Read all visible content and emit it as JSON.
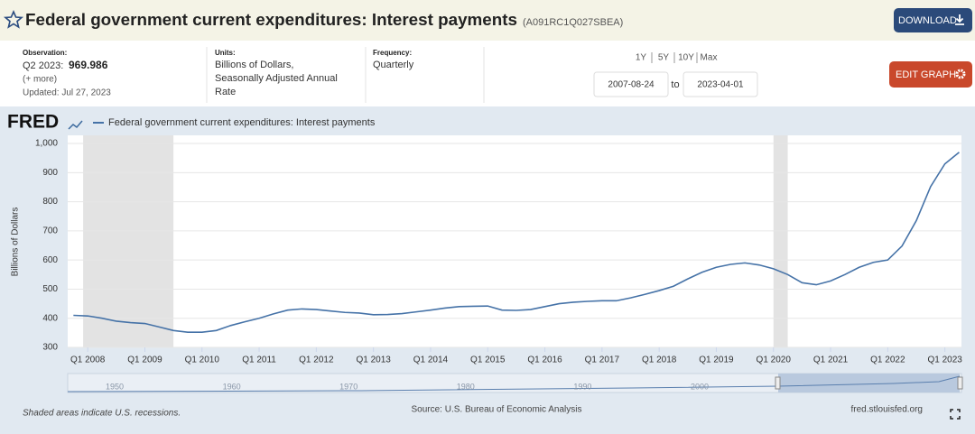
{
  "header": {
    "title": "Federal government current expenditures: Interest payments",
    "series_id": "(A091RC1Q027SBEA)",
    "download": "DOWNLOAD"
  },
  "observation": {
    "label": "Observation:",
    "period": "Q2 2023:",
    "more": "(+ more)",
    "updated": "Updated: Jul 27, 2023"
  },
  "units": {
    "label": "Units:",
    "lines": [
      "Billions of Dollars,",
      "Seasonally Adjusted Annual",
      "Rate"
    ]
  },
  "frequency": {
    "label": "Frequency:",
    "value": "Quarterly"
  },
  "ranges": [
    "1Y",
    "5Y",
    "10Y",
    "Max"
  ],
  "dates": {
    "start": "2007-08-24",
    "to": "to",
    "end": "2023-04-01"
  },
  "edit_graph": "EDIT GRAPH",
  "chart_data": {
    "type": "line",
    "logo": "FRED",
    "y_label": "Billions of Dollars",
    "x": [
      2007.75,
      2008,
      2008.25,
      2008.5,
      2008.75,
      2009,
      2009.25,
      2009.5,
      2009.75,
      2010,
      2010.25,
      2010.5,
      2010.75,
      2011,
      2011.25,
      2011.5,
      2011.75,
      2012,
      2012.25,
      2012.5,
      2012.75,
      2013,
      2013.25,
      2013.5,
      2013.75,
      2014,
      2014.25,
      2014.5,
      2014.75,
      2015,
      2015.25,
      2015.5,
      2015.75,
      2016,
      2016.25,
      2016.5,
      2016.75,
      2017,
      2017.25,
      2017.5,
      2017.75,
      2018,
      2018.25,
      2018.5,
      2018.75,
      2019,
      2019.25,
      2019.5,
      2019.75,
      2020,
      2020.25,
      2020.5,
      2020.75,
      2021,
      2021.25,
      2021.5,
      2021.75,
      2022,
      2022.25,
      2022.5,
      2022.75,
      2023,
      2023.25
    ],
    "series": [
      {
        "name": "Federal government current expenditures: Interest payments",
        "color": "#4572a7",
        "values": [
          410,
          408,
          400,
          390,
          385,
          382,
          370,
          358,
          352,
          352,
          358,
          375,
          388,
          400,
          415,
          428,
          432,
          430,
          425,
          420,
          418,
          412,
          413,
          416,
          422,
          428,
          435,
          440,
          441,
          442,
          428,
          427,
          430,
          440,
          450,
          455,
          458,
          460,
          460,
          470,
          482,
          495,
          510,
          535,
          558,
          575,
          585,
          590,
          583,
          570,
          550,
          522,
          515,
          528,
          550,
          575,
          592,
          600,
          648,
          735,
          852,
          930,
          969.986
        ]
      }
    ],
    "xlim": [
      2007.65,
      2023.29
    ],
    "xticks": [
      {
        "value": 2008,
        "label": "Q1 2008"
      },
      {
        "value": 2009,
        "label": "Q1 2009"
      },
      {
        "value": 2010,
        "label": "Q1 2010"
      },
      {
        "value": 2011,
        "label": "Q1 2011"
      },
      {
        "value": 2012,
        "label": "Q1 2012"
      },
      {
        "value": 2013,
        "label": "Q1 2013"
      },
      {
        "value": 2014,
        "label": "Q1 2014"
      },
      {
        "value": 2015,
        "label": "Q1 2015"
      },
      {
        "value": 2016,
        "label": "Q1 2016"
      },
      {
        "value": 2017,
        "label": "Q1 2017"
      },
      {
        "value": 2018,
        "label": "Q1 2018"
      },
      {
        "value": 2019,
        "label": "Q1 2019"
      },
      {
        "value": 2020,
        "label": "Q1 2020"
      },
      {
        "value": 2021,
        "label": "Q1 2021"
      },
      {
        "value": 2022,
        "label": "Q1 2022"
      },
      {
        "value": 2023,
        "label": "Q1 2023"
      }
    ],
    "ylim": [
      300,
      1028
    ],
    "yticks": [
      300,
      400,
      500,
      600,
      700,
      800,
      900,
      {
        "value": 1000,
        "label": "1,000"
      }
    ],
    "grid": true,
    "recessions": [
      [
        2007.92,
        2009.5
      ],
      [
        2020,
        2020.25
      ]
    ]
  },
  "navigator": {
    "labels": [
      "1950",
      "1960",
      "1970",
      "1980",
      "1990",
      "2000"
    ]
  },
  "footer": {
    "note": "Shaded areas indicate U.S. recessions.",
    "source": "Source: U.S. Bureau of Economic Analysis",
    "site": "fred.stlouisfed.org"
  }
}
